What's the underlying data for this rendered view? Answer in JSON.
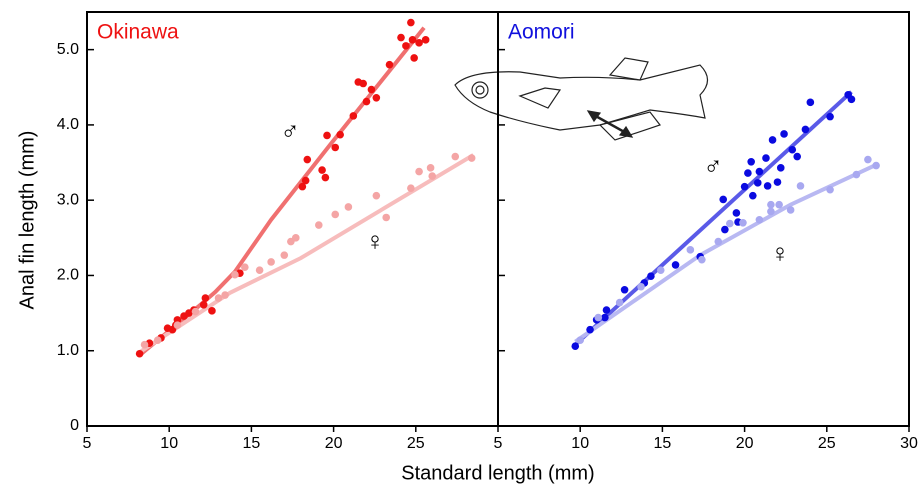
{
  "chart_data": [
    {
      "type": "scatter",
      "title": "Okinawa",
      "title_color": "#ee1111",
      "ylabel": "Anal fin length (mm)",
      "xlabel": "Standard length (mm)",
      "xlim": [
        5,
        30
      ],
      "xticks": [
        5,
        10,
        15,
        20,
        25
      ],
      "ylim": [
        0,
        5.5
      ],
      "yticks": [
        0,
        {
          "value": 1,
          "label": "1.0"
        },
        {
          "value": 2,
          "label": "2.0"
        },
        {
          "value": 3,
          "label": "3.0"
        },
        {
          "value": 4,
          "label": "4.0"
        },
        {
          "value": 5,
          "label": "5.0"
        }
      ],
      "series": [
        {
          "name": "♂",
          "color": "#ee1111",
          "fit_color": "#f07070",
          "x": [
            8.2,
            8.8,
            9.5,
            9.9,
            10.2,
            10.4,
            10.5,
            10.9,
            11.2,
            11.5,
            12.1,
            12.2,
            12.6,
            14.3,
            18.1,
            18.3,
            18.4,
            19.3,
            19.5,
            19.6,
            20.1,
            20.4,
            21.2,
            21.5,
            21.8,
            22.0,
            22.3,
            22.6,
            23.4,
            24.1,
            24.4,
            24.7,
            24.9,
            25.2,
            25.6,
            24.8
          ],
          "values": [
            0.96,
            1.1,
            1.17,
            1.3,
            1.28,
            1.34,
            1.41,
            1.46,
            1.5,
            1.54,
            1.61,
            1.7,
            1.53,
            2.03,
            3.18,
            3.26,
            3.54,
            3.4,
            3.3,
            3.86,
            3.7,
            3.87,
            4.12,
            4.57,
            4.55,
            4.31,
            4.47,
            4.36,
            4.8,
            5.16,
            5.05,
            5.36,
            4.89,
            5.09,
            5.13,
            5.13
          ],
          "fit": {
            "x": [
              8.2,
              11.9,
              12.8,
              14.0,
              16.2,
              19.8,
              25.5
            ],
            "y": [
              0.94,
              1.61,
              1.78,
              2.05,
              2.74,
              3.74,
              5.29
            ]
          }
        },
        {
          "name": "♀",
          "color": "#f4a5a5",
          "fit_color": "#f7bcbc",
          "x": [
            8.5,
            9.3,
            10.5,
            11.6,
            13.0,
            13.4,
            14.0,
            14.6,
            15.5,
            16.2,
            17.0,
            17.4,
            17.7,
            19.1,
            20.1,
            20.9,
            22.6,
            23.2,
            24.7,
            25.2,
            25.9,
            26.0,
            27.4,
            28.4
          ],
          "values": [
            1.08,
            1.14,
            1.34,
            1.52,
            1.7,
            1.74,
            2.01,
            2.11,
            2.07,
            2.18,
            2.27,
            2.45,
            2.5,
            2.67,
            2.81,
            2.91,
            3.06,
            2.77,
            3.16,
            3.38,
            3.43,
            3.32,
            3.58,
            3.56
          ],
          "fit": {
            "x": [
              8.2,
              13.7,
              18.0,
              22.9,
              28.5
            ],
            "y": [
              0.98,
              1.77,
              2.23,
              2.87,
              3.6
            ]
          }
        }
      ]
    },
    {
      "type": "scatter",
      "title": "Aomori",
      "title_color": "#1010dd",
      "xlim": [
        5,
        30
      ],
      "xticks": [
        5,
        10,
        15,
        20,
        25,
        30
      ],
      "ylim": [
        0,
        5.5
      ],
      "yticks": [
        0,
        1,
        2,
        3,
        4,
        5
      ],
      "series": [
        {
          "name": "♂",
          "color": "#0a0ae0",
          "fit_color": "#5a5ae8",
          "x": [
            9.7,
            10.6,
            11.0,
            11.5,
            11.6,
            12.7,
            13.9,
            14.3,
            15.8,
            17.3,
            18.8,
            19.5,
            20.0,
            20.2,
            20.4,
            20.5,
            20.8,
            20.9,
            21.3,
            21.4,
            21.7,
            22.0,
            22.2,
            22.4,
            22.9,
            23.2,
            23.7,
            24.0,
            25.2,
            26.3,
            26.5,
            18.7,
            19.6
          ],
          "values": [
            1.06,
            1.28,
            1.41,
            1.44,
            1.54,
            1.81,
            1.9,
            1.99,
            2.14,
            2.25,
            2.61,
            2.83,
            3.18,
            3.36,
            3.51,
            3.06,
            3.23,
            3.38,
            3.56,
            3.19,
            3.8,
            3.24,
            3.43,
            3.88,
            3.67,
            3.58,
            3.94,
            4.3,
            4.11,
            4.4,
            4.34,
            3.01,
            2.71
          ],
          "fit": {
            "x": [
              9.7,
              26.5
            ],
            "y": [
              1.08,
              4.44
            ]
          }
        },
        {
          "name": "♀",
          "color": "#a8a8f0",
          "fit_color": "#b8b8f2",
          "x": [
            10.0,
            11.1,
            12.4,
            13.7,
            14.9,
            16.7,
            17.4,
            18.4,
            19.1,
            19.9,
            20.9,
            21.6,
            22.1,
            22.8,
            23.4,
            25.2,
            26.8,
            27.5,
            28.0,
            21.6
          ],
          "values": [
            1.14,
            1.44,
            1.64,
            1.85,
            2.07,
            2.34,
            2.21,
            2.45,
            2.69,
            2.7,
            2.74,
            2.85,
            2.94,
            2.87,
            3.19,
            3.14,
            3.34,
            3.54,
            3.46,
            2.94
          ],
          "fit": {
            "x": [
              9.7,
              17.3,
              22.8,
              28.0
            ],
            "y": [
              1.12,
              2.27,
              2.94,
              3.47
            ]
          }
        }
      ]
    }
  ]
}
